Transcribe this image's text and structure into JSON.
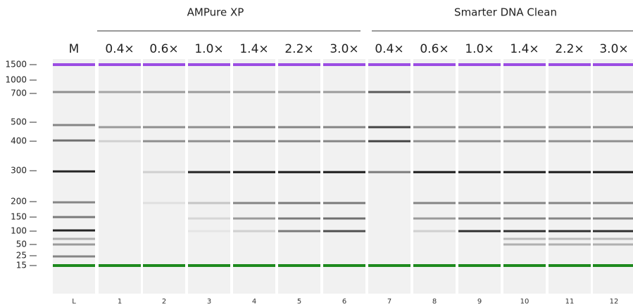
{
  "groups": [
    {
      "label": "AMPure XP"
    },
    {
      "label": "Smarter DNA Clean"
    }
  ],
  "lane_headers": [
    "M",
    "0.4×",
    "0.6×",
    "1.0×",
    "1.4×",
    "2.2×",
    "3.0×",
    "0.4×",
    "0.6×",
    "1.0×",
    "1.4×",
    "2.2×",
    "3.0×"
  ],
  "lane_numbers": [
    "L",
    "1",
    "2",
    "3",
    "4",
    "5",
    "6",
    "7",
    "8",
    "9",
    "10",
    "11",
    "12"
  ],
  "size_markers": [
    "1500",
    "1000",
    "700",
    "500",
    "400",
    "300",
    "200",
    "150",
    "100",
    "50",
    "25",
    "15"
  ]
}
